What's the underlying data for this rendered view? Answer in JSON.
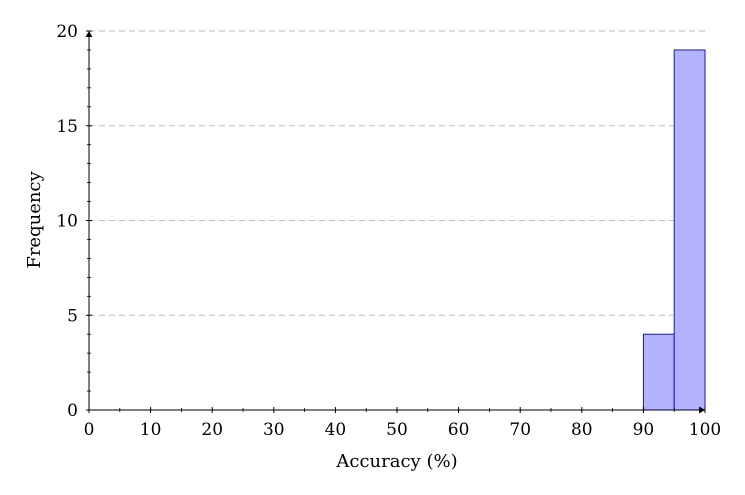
{
  "chart_data": {
    "type": "bar",
    "title": "",
    "xlabel": "Accuracy (%)",
    "ylabel": "Frequency",
    "xlim": [
      0,
      100
    ],
    "ylim": [
      0,
      20
    ],
    "x_ticks": [
      0,
      10,
      20,
      30,
      40,
      50,
      60,
      70,
      80,
      90,
      100
    ],
    "x_tick_labels": [
      "0",
      "10",
      "20",
      "30",
      "40",
      "50",
      "60",
      "70",
      "80",
      "90",
      "100"
    ],
    "y_ticks": [
      0,
      5,
      10,
      15,
      20
    ],
    "y_tick_labels": [
      "0",
      "5",
      "10",
      "15",
      "20"
    ],
    "bins": [
      {
        "start": 90,
        "end": 95,
        "value": 4
      },
      {
        "start": 95,
        "end": 100,
        "value": 19
      }
    ],
    "grid": "horizontal dashed",
    "colors": {
      "bar_fill": "#b3b3ff",
      "bar_stroke": "#1a1aa6",
      "grid": "#bdbdbd",
      "axis": "#000000"
    }
  }
}
